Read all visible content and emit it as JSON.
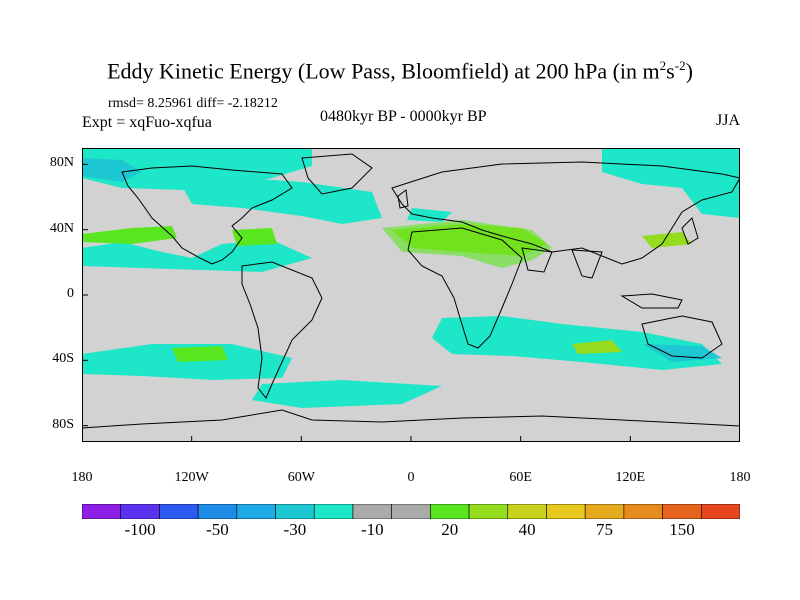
{
  "title": {
    "text": "Eddy Kinetic Energy (Low Pass, Bloomfield) at 200 hPa (in m",
    "sup1": "2",
    "mid": "s",
    "sup2": "-2",
    "end": ")"
  },
  "stats": "rmsd= 8.25961 diff= -2.18212",
  "expt": "Expt = xqFuo-xqfua",
  "period": "0480kyr BP - 0000kyr BP",
  "season": "JJA",
  "axes": {
    "y_ticks": [
      {
        "label": "80N",
        "lat": 80
      },
      {
        "label": "40N",
        "lat": 40
      },
      {
        "label": "0",
        "lat": 0
      },
      {
        "label": "40S",
        "lat": -40
      },
      {
        "label": "80S",
        "lat": -80
      }
    ],
    "x_ticks": [
      {
        "label": "180",
        "lon": -180
      },
      {
        "label": "120W",
        "lon": -120
      },
      {
        "label": "60W",
        "lon": -60
      },
      {
        "label": "0",
        "lon": 0
      },
      {
        "label": "60E",
        "lon": 60
      },
      {
        "label": "120E",
        "lon": 120
      },
      {
        "label": "180",
        "lon": 180
      }
    ],
    "lon_range": [
      -180,
      180
    ],
    "lat_range": [
      -90,
      90
    ]
  },
  "colorbar": {
    "colors": [
      "#8c1ee6",
      "#5a32f0",
      "#2d5af0",
      "#1e8ce6",
      "#1eaae6",
      "#1ec8d2",
      "#1ee6c8",
      "#aaaaaa",
      "#aaaaaa",
      "#5ae61e",
      "#96dc1e",
      "#c8d21e",
      "#e6c81e",
      "#e6aa1e",
      "#e68c1e",
      "#e6641e",
      "#e6461e"
    ],
    "labels": [
      {
        "text": "-100",
        "index": 2
      },
      {
        "text": "-50",
        "index": 4
      },
      {
        "text": "-30",
        "index": 6
      },
      {
        "text": "-10",
        "index": 8
      },
      {
        "text": "20",
        "index": 10
      },
      {
        "text": "40",
        "index": 12
      },
      {
        "text": "75",
        "index": 14
      },
      {
        "text": "150",
        "index": 16
      }
    ]
  },
  "colors": {
    "background": "#d2d2d2",
    "neg_light": "#1ee6c8",
    "neg_mid": "#1ec8d2",
    "pos_light": "#5ae61e",
    "pos_mid": "#96dc1e",
    "coast": "#000000"
  }
}
